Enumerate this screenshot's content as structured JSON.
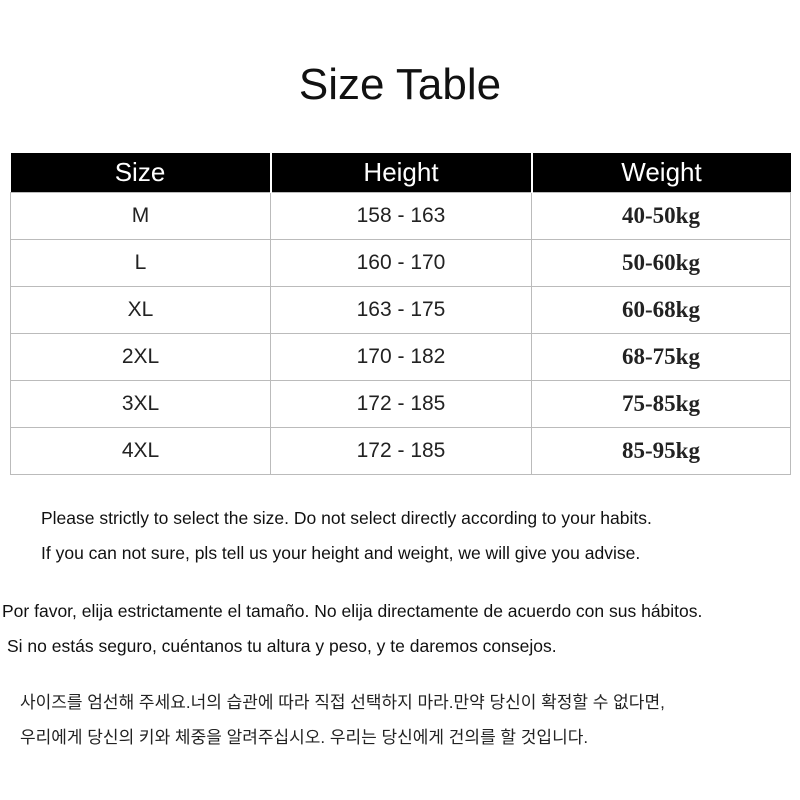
{
  "header": {
    "title": "Size Table"
  },
  "table": {
    "columns": [
      "Size",
      "Height",
      "Weight"
    ],
    "rows": [
      [
        "M",
        "158 - 163",
        "40-50kg"
      ],
      [
        "L",
        "160 - 170",
        "50-60kg"
      ],
      [
        "XL",
        "163 - 175",
        "60-68kg"
      ],
      [
        "2XL",
        "170 - 182",
        "68-75kg"
      ],
      [
        "3XL",
        "172 - 185",
        "75-85kg"
      ],
      [
        "4XL",
        "172 - 185",
        "85-95kg"
      ]
    ]
  },
  "notes": {
    "english": [
      "Please strictly to select the size. Do not select directly according to your habits.",
      "If you can not sure, pls tell us your height and weight, we will give you advise."
    ],
    "spanish": [
      "Por favor, elija estrictamente el tamaño. No elija directamente de acuerdo con sus hábitos.",
      "Si no estás seguro, cuéntanos tu altura y peso, y te daremos consejos."
    ],
    "korean": [
      "사이즈를 엄선해 주세요.너의 습관에 따라 직접 선택하지 마라.만약 당신이 확정할 수 없다면,",
      "우리에게 당신의 키와 체중을 알려주십시오. 우리는 당신에게 건의를 할 것입니다."
    ]
  }
}
